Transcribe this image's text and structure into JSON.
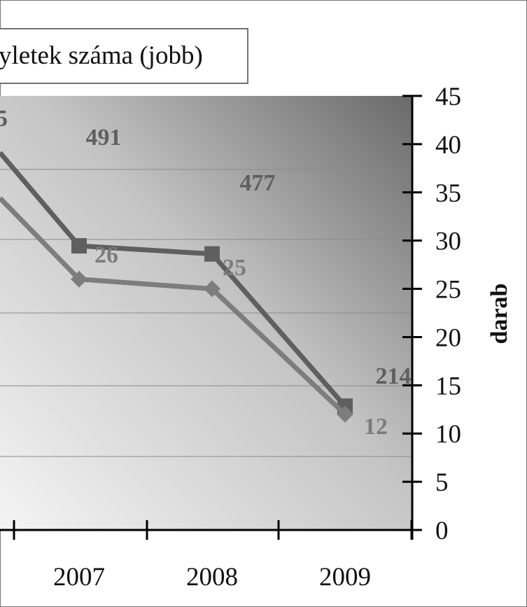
{
  "chart_data": {
    "type": "line",
    "categories": [
      "2007",
      "2008",
      "2009"
    ],
    "series": [
      {
        "name": "",
        "values": [
          491,
          477,
          214
        ],
        "data_labels": [
          "491",
          "477",
          "214"
        ],
        "color": "#5f5f5f",
        "marker": "square"
      },
      {
        "name": "yletek száma (jobb)",
        "values": [
          26,
          25,
          12
        ],
        "data_labels": [
          "26",
          "25",
          "12"
        ],
        "color": "#7d7d7d",
        "marker": "diamond"
      }
    ],
    "partial_label_top_left": "5",
    "y2_axis": {
      "label": "darab",
      "range": [
        0,
        45
      ],
      "ticks": [
        "0",
        "5",
        "10",
        "15",
        "20",
        "25",
        "30",
        "35",
        "40",
        "45"
      ]
    },
    "legend": {
      "text": "yletek száma (jobb)",
      "placement": "top"
    },
    "grid": true
  }
}
